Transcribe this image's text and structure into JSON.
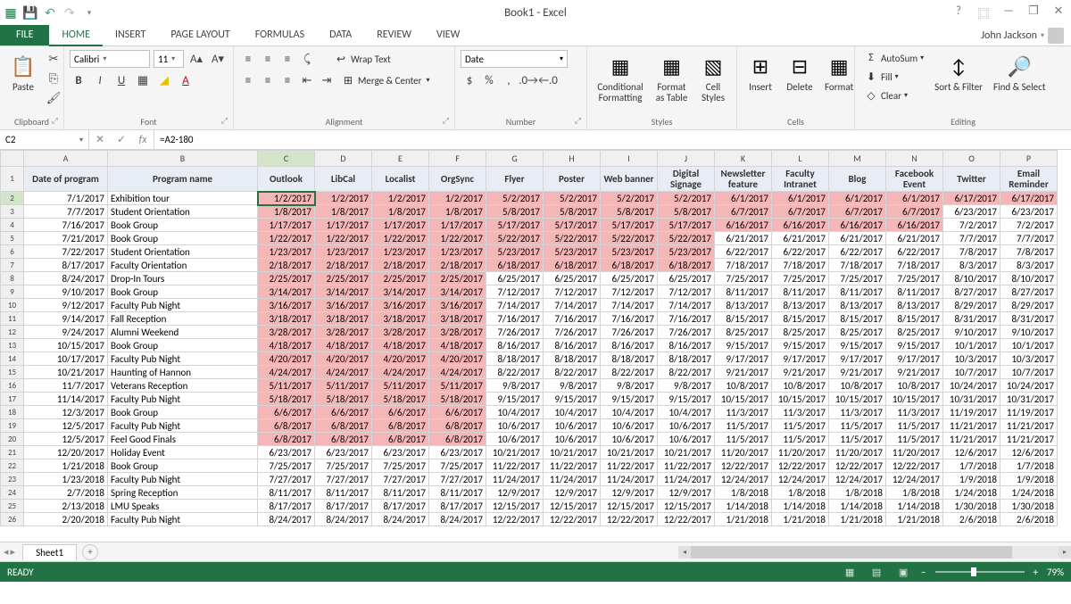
{
  "app": {
    "title": "Book1 - Excel",
    "user": "John Jackson"
  },
  "ribbon": {
    "file": "FILE",
    "tabs": [
      "HOME",
      "INSERT",
      "PAGE LAYOUT",
      "FORMULAS",
      "DATA",
      "REVIEW",
      "VIEW"
    ],
    "active": 0,
    "groups": {
      "clipboard": {
        "label": "Clipboard",
        "paste": "Paste"
      },
      "font": {
        "label": "Font",
        "name": "Calibri",
        "size": "11"
      },
      "alignment": {
        "label": "Alignment",
        "wrap": "Wrap Text",
        "merge": "Merge & Center"
      },
      "number": {
        "label": "Number",
        "format": "Date"
      },
      "styles": {
        "label": "Styles",
        "cond": "Conditional Formatting",
        "table": "Format as Table",
        "cell": "Cell Styles"
      },
      "cells": {
        "label": "Cells",
        "insert": "Insert",
        "delete": "Delete",
        "format": "Format"
      },
      "editing": {
        "label": "Editing",
        "autosum": "AutoSum",
        "fill": "Fill",
        "clear": "Clear",
        "sort": "Sort & Filter",
        "find": "Find & Select"
      }
    }
  },
  "formula_bar": {
    "cell_ref": "C2",
    "formula": "=A2-180"
  },
  "columns": [
    "A",
    "B",
    "C",
    "D",
    "E",
    "F",
    "G",
    "H",
    "I",
    "J",
    "K",
    "L",
    "M",
    "N",
    "O",
    "P"
  ],
  "selected_col": "C",
  "selected_row": 2,
  "headers": [
    "Date of program",
    "Program name",
    "Outlook",
    "LibCal",
    "Localist",
    "OrgSync",
    "Flyer",
    "Poster",
    "Web banner",
    "Digital Signage",
    "Newsletter feature",
    "Faculty Intranet",
    "Blog",
    "Facebook Event",
    "Twitter",
    "Email Reminder"
  ],
  "rows": [
    {
      "r": 2,
      "A": "7/1/2017",
      "B": "Exhibition tour",
      "C": "1/2/2017",
      "D": "1/2/2017",
      "E": "1/2/2017",
      "F": "1/2/2017",
      "G": "5/2/2017",
      "H": "5/2/2017",
      "I": "5/2/2017",
      "J": "5/2/2017",
      "K": "6/1/2017",
      "L": "6/1/2017",
      "M": "6/1/2017",
      "N": "6/1/2017",
      "O": "6/17/2017",
      "P": "6/17/2017",
      "hl": "CDEFGHIJKLMNOP"
    },
    {
      "r": 3,
      "A": "7/7/2017",
      "B": "Student Orientation",
      "C": "1/8/2017",
      "D": "1/8/2017",
      "E": "1/8/2017",
      "F": "1/8/2017",
      "G": "5/8/2017",
      "H": "5/8/2017",
      "I": "5/8/2017",
      "J": "5/8/2017",
      "K": "6/7/2017",
      "L": "6/7/2017",
      "M": "6/7/2017",
      "N": "6/7/2017",
      "O": "6/23/2017",
      "P": "6/23/2017",
      "hl": "CDEFGHIJKLMN"
    },
    {
      "r": 4,
      "A": "7/16/2017",
      "B": "Book Group",
      "C": "1/17/2017",
      "D": "1/17/2017",
      "E": "1/17/2017",
      "F": "1/17/2017",
      "G": "5/17/2017",
      "H": "5/17/2017",
      "I": "5/17/2017",
      "J": "5/17/2017",
      "K": "6/16/2017",
      "L": "6/16/2017",
      "M": "6/16/2017",
      "N": "6/16/2017",
      "O": "7/2/2017",
      "P": "7/2/2017",
      "hl": "CDEFGHIJKLMN"
    },
    {
      "r": 5,
      "A": "7/21/2017",
      "B": "Book Group",
      "C": "1/22/2017",
      "D": "1/22/2017",
      "E": "1/22/2017",
      "F": "1/22/2017",
      "G": "5/22/2017",
      "H": "5/22/2017",
      "I": "5/22/2017",
      "J": "5/22/2017",
      "K": "6/21/2017",
      "L": "6/21/2017",
      "M": "6/21/2017",
      "N": "6/21/2017",
      "O": "7/7/2017",
      "P": "7/7/2017",
      "hl": "CDEFGHIJ"
    },
    {
      "r": 6,
      "A": "7/22/2017",
      "B": "Student Orientation",
      "C": "1/23/2017",
      "D": "1/23/2017",
      "E": "1/23/2017",
      "F": "1/23/2017",
      "G": "5/23/2017",
      "H": "5/23/2017",
      "I": "5/23/2017",
      "J": "5/23/2017",
      "K": "6/22/2017",
      "L": "6/22/2017",
      "M": "6/22/2017",
      "N": "6/22/2017",
      "O": "7/8/2017",
      "P": "7/8/2017",
      "hl": "CDEFGHIJ"
    },
    {
      "r": 7,
      "A": "8/17/2017",
      "B": "Faculty Orientation",
      "C": "2/18/2017",
      "D": "2/18/2017",
      "E": "2/18/2017",
      "F": "2/18/2017",
      "G": "6/18/2017",
      "H": "6/18/2017",
      "I": "6/18/2017",
      "J": "6/18/2017",
      "K": "7/18/2017",
      "L": "7/18/2017",
      "M": "7/18/2017",
      "N": "7/18/2017",
      "O": "8/3/2017",
      "P": "8/3/2017",
      "hl": "CDEFGHIJ"
    },
    {
      "r": 8,
      "A": "8/24/2017",
      "B": "Drop-In Tours",
      "C": "2/25/2017",
      "D": "2/25/2017",
      "E": "2/25/2017",
      "F": "2/25/2017",
      "G": "6/25/2017",
      "H": "6/25/2017",
      "I": "6/25/2017",
      "J": "6/25/2017",
      "K": "7/25/2017",
      "L": "7/25/2017",
      "M": "7/25/2017",
      "N": "7/25/2017",
      "O": "8/10/2017",
      "P": "8/10/2017",
      "hl": "CDEF"
    },
    {
      "r": 9,
      "A": "9/10/2017",
      "B": "Book Group",
      "C": "3/14/2017",
      "D": "3/14/2017",
      "E": "3/14/2017",
      "F": "3/14/2017",
      "G": "7/12/2017",
      "H": "7/12/2017",
      "I": "7/12/2017",
      "J": "7/12/2017",
      "K": "8/11/2017",
      "L": "8/11/2017",
      "M": "8/11/2017",
      "N": "8/11/2017",
      "O": "8/27/2017",
      "P": "8/27/2017",
      "hl": "CDEF"
    },
    {
      "r": 10,
      "A": "9/12/2017",
      "B": "Faculty Pub Night",
      "C": "3/16/2017",
      "D": "3/16/2017",
      "E": "3/16/2017",
      "F": "3/16/2017",
      "G": "7/14/2017",
      "H": "7/14/2017",
      "I": "7/14/2017",
      "J": "7/14/2017",
      "K": "8/13/2017",
      "L": "8/13/2017",
      "M": "8/13/2017",
      "N": "8/13/2017",
      "O": "8/29/2017",
      "P": "8/29/2017",
      "hl": "CDEF"
    },
    {
      "r": 11,
      "A": "9/14/2017",
      "B": "Fall Reception",
      "C": "3/18/2017",
      "D": "3/18/2017",
      "E": "3/18/2017",
      "F": "3/18/2017",
      "G": "7/16/2017",
      "H": "7/16/2017",
      "I": "7/16/2017",
      "J": "7/16/2017",
      "K": "8/15/2017",
      "L": "8/15/2017",
      "M": "8/15/2017",
      "N": "8/15/2017",
      "O": "8/31/2017",
      "P": "8/31/2017",
      "hl": "CDEF"
    },
    {
      "r": 12,
      "A": "9/24/2017",
      "B": "Alumni Weekend",
      "C": "3/28/2017",
      "D": "3/28/2017",
      "E": "3/28/2017",
      "F": "3/28/2017",
      "G": "7/26/2017",
      "H": "7/26/2017",
      "I": "7/26/2017",
      "J": "7/26/2017",
      "K": "8/25/2017",
      "L": "8/25/2017",
      "M": "8/25/2017",
      "N": "8/25/2017",
      "O": "9/10/2017",
      "P": "9/10/2017",
      "hl": "CDEF"
    },
    {
      "r": 13,
      "A": "10/15/2017",
      "B": "Book Group",
      "C": "4/18/2017",
      "D": "4/18/2017",
      "E": "4/18/2017",
      "F": "4/18/2017",
      "G": "8/16/2017",
      "H": "8/16/2017",
      "I": "8/16/2017",
      "J": "8/16/2017",
      "K": "9/15/2017",
      "L": "9/15/2017",
      "M": "9/15/2017",
      "N": "9/15/2017",
      "O": "10/1/2017",
      "P": "10/1/2017",
      "hl": "CDEF"
    },
    {
      "r": 14,
      "A": "10/17/2017",
      "B": "Faculty Pub Night",
      "C": "4/20/2017",
      "D": "4/20/2017",
      "E": "4/20/2017",
      "F": "4/20/2017",
      "G": "8/18/2017",
      "H": "8/18/2017",
      "I": "8/18/2017",
      "J": "8/18/2017",
      "K": "9/17/2017",
      "L": "9/17/2017",
      "M": "9/17/2017",
      "N": "9/17/2017",
      "O": "10/3/2017",
      "P": "10/3/2017",
      "hl": "CDEF"
    },
    {
      "r": 15,
      "A": "10/21/2017",
      "B": "Haunting of Hannon",
      "C": "4/24/2017",
      "D": "4/24/2017",
      "E": "4/24/2017",
      "F": "4/24/2017",
      "G": "8/22/2017",
      "H": "8/22/2017",
      "I": "8/22/2017",
      "J": "8/22/2017",
      "K": "9/21/2017",
      "L": "9/21/2017",
      "M": "9/21/2017",
      "N": "9/21/2017",
      "O": "10/7/2017",
      "P": "10/7/2017",
      "hl": "CDEF"
    },
    {
      "r": 16,
      "A": "11/7/2017",
      "B": "Veterans Reception",
      "C": "5/11/2017",
      "D": "5/11/2017",
      "E": "5/11/2017",
      "F": "5/11/2017",
      "G": "9/8/2017",
      "H": "9/8/2017",
      "I": "9/8/2017",
      "J": "9/8/2017",
      "K": "10/8/2017",
      "L": "10/8/2017",
      "M": "10/8/2017",
      "N": "10/8/2017",
      "O": "10/24/2017",
      "P": "10/24/2017",
      "hl": "CDEF"
    },
    {
      "r": 17,
      "A": "11/14/2017",
      "B": "Faculty Pub Night",
      "C": "5/18/2017",
      "D": "5/18/2017",
      "E": "5/18/2017",
      "F": "5/18/2017",
      "G": "9/15/2017",
      "H": "9/15/2017",
      "I": "9/15/2017",
      "J": "9/15/2017",
      "K": "10/15/2017",
      "L": "10/15/2017",
      "M": "10/15/2017",
      "N": "10/15/2017",
      "O": "10/31/2017",
      "P": "10/31/2017",
      "hl": "CDEF"
    },
    {
      "r": 18,
      "A": "12/3/2017",
      "B": "Book Group",
      "C": "6/6/2017",
      "D": "6/6/2017",
      "E": "6/6/2017",
      "F": "6/6/2017",
      "G": "10/4/2017",
      "H": "10/4/2017",
      "I": "10/4/2017",
      "J": "10/4/2017",
      "K": "11/3/2017",
      "L": "11/3/2017",
      "M": "11/3/2017",
      "N": "11/3/2017",
      "O": "11/19/2017",
      "P": "11/19/2017",
      "hl": "CDEF"
    },
    {
      "r": 19,
      "A": "12/5/2017",
      "B": "Faculty Pub Night",
      "C": "6/8/2017",
      "D": "6/8/2017",
      "E": "6/8/2017",
      "F": "6/8/2017",
      "G": "10/6/2017",
      "H": "10/6/2017",
      "I": "10/6/2017",
      "J": "10/6/2017",
      "K": "11/5/2017",
      "L": "11/5/2017",
      "M": "11/5/2017",
      "N": "11/5/2017",
      "O": "11/21/2017",
      "P": "11/21/2017",
      "hl": "CDEF"
    },
    {
      "r": 20,
      "A": "12/5/2017",
      "B": "Feel Good Finals",
      "C": "6/8/2017",
      "D": "6/8/2017",
      "E": "6/8/2017",
      "F": "6/8/2017",
      "G": "10/6/2017",
      "H": "10/6/2017",
      "I": "10/6/2017",
      "J": "10/6/2017",
      "K": "11/5/2017",
      "L": "11/5/2017",
      "M": "11/5/2017",
      "N": "11/5/2017",
      "O": "11/21/2017",
      "P": "11/21/2017",
      "hl": "CDEF"
    },
    {
      "r": 21,
      "A": "12/20/2017",
      "B": "Holiday Event",
      "C": "6/23/2017",
      "D": "6/23/2017",
      "E": "6/23/2017",
      "F": "6/23/2017",
      "G": "10/21/2017",
      "H": "10/21/2017",
      "I": "10/21/2017",
      "J": "10/21/2017",
      "K": "11/20/2017",
      "L": "11/20/2017",
      "M": "11/20/2017",
      "N": "11/20/2017",
      "O": "12/6/2017",
      "P": "12/6/2017",
      "hl": ""
    },
    {
      "r": 22,
      "A": "1/21/2018",
      "B": "Book Group",
      "C": "7/25/2017",
      "D": "7/25/2017",
      "E": "7/25/2017",
      "F": "7/25/2017",
      "G": "11/22/2017",
      "H": "11/22/2017",
      "I": "11/22/2017",
      "J": "11/22/2017",
      "K": "12/22/2017",
      "L": "12/22/2017",
      "M": "12/22/2017",
      "N": "12/22/2017",
      "O": "1/7/2018",
      "P": "1/7/2018",
      "hl": ""
    },
    {
      "r": 23,
      "A": "1/23/2018",
      "B": "Faculty Pub Night",
      "C": "7/27/2017",
      "D": "7/27/2017",
      "E": "7/27/2017",
      "F": "7/27/2017",
      "G": "11/24/2017",
      "H": "11/24/2017",
      "I": "11/24/2017",
      "J": "11/24/2017",
      "K": "12/24/2017",
      "L": "12/24/2017",
      "M": "12/24/2017",
      "N": "12/24/2017",
      "O": "1/9/2018",
      "P": "1/9/2018",
      "hl": ""
    },
    {
      "r": 24,
      "A": "2/7/2018",
      "B": "Spring Reception",
      "C": "8/11/2017",
      "D": "8/11/2017",
      "E": "8/11/2017",
      "F": "8/11/2017",
      "G": "12/9/2017",
      "H": "12/9/2017",
      "I": "12/9/2017",
      "J": "12/9/2017",
      "K": "1/8/2018",
      "L": "1/8/2018",
      "M": "1/8/2018",
      "N": "1/8/2018",
      "O": "1/24/2018",
      "P": "1/24/2018",
      "hl": ""
    },
    {
      "r": 25,
      "A": "2/13/2018",
      "B": "LMU Speaks",
      "C": "8/17/2017",
      "D": "8/17/2017",
      "E": "8/17/2017",
      "F": "8/17/2017",
      "G": "12/15/2017",
      "H": "12/15/2017",
      "I": "12/15/2017",
      "J": "12/15/2017",
      "K": "1/14/2018",
      "L": "1/14/2018",
      "M": "1/14/2018",
      "N": "1/14/2018",
      "O": "1/30/2018",
      "P": "1/30/2018",
      "hl": ""
    },
    {
      "r": 26,
      "A": "2/20/2018",
      "B": "Faculty Pub Night",
      "C": "8/24/2017",
      "D": "8/24/2017",
      "E": "8/24/2017",
      "F": "8/24/2017",
      "G": "12/22/2017",
      "H": "12/22/2017",
      "I": "12/22/2017",
      "J": "12/22/2017",
      "K": "1/21/2018",
      "L": "1/21/2018",
      "M": "1/21/2018",
      "N": "1/21/2018",
      "O": "2/6/2018",
      "P": "2/6/2018",
      "hl": ""
    }
  ],
  "colors": {
    "highlight": "#f4b6b6",
    "header_bg": "#e8ecf4",
    "accent": "#217346"
  },
  "sheet_tabs": {
    "active": "Sheet1"
  },
  "statusbar": {
    "ready": "READY",
    "zoom": "79%"
  }
}
